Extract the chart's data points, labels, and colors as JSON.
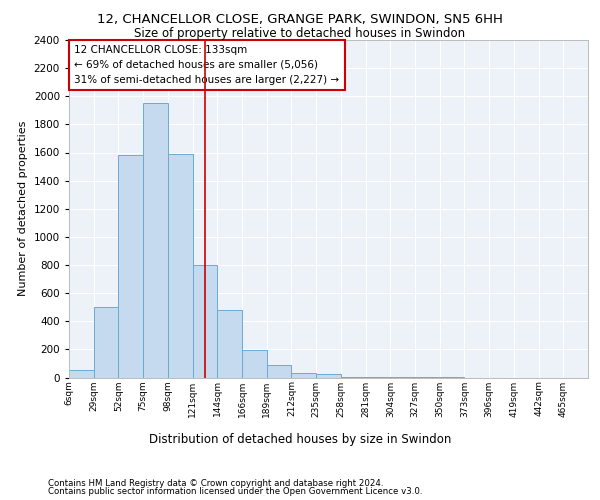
{
  "title_line1": "12, CHANCELLOR CLOSE, GRANGE PARK, SWINDON, SN5 6HH",
  "title_line2": "Size of property relative to detached houses in Swindon",
  "xlabel": "Distribution of detached houses by size in Swindon",
  "ylabel": "Number of detached properties",
  "footnote1": "Contains HM Land Registry data © Crown copyright and database right 2024.",
  "footnote2": "Contains public sector information licensed under the Open Government Licence v3.0.",
  "bar_labels": [
    "6sqm",
    "29sqm",
    "52sqm",
    "75sqm",
    "98sqm",
    "121sqm",
    "144sqm",
    "166sqm",
    "189sqm",
    "212sqm",
    "235sqm",
    "258sqm",
    "281sqm",
    "304sqm",
    "327sqm",
    "350sqm",
    "373sqm",
    "396sqm",
    "419sqm",
    "442sqm",
    "465sqm"
  ],
  "bar_heights": [
    55,
    500,
    1580,
    1950,
    1590,
    800,
    480,
    195,
    90,
    35,
    25,
    5,
    3,
    1,
    1,
    1,
    0,
    0,
    0,
    0,
    0
  ],
  "bar_color": "#c5d9ef",
  "bar_edge_color": "#6aabd2",
  "bg_color": "#edf2f9",
  "grid_color": "#ffffff",
  "vline_x": 4.57,
  "vline_color": "#cc0000",
  "annotation_text": "12 CHANCELLOR CLOSE: 133sqm\n← 69% of detached houses are smaller (5,056)\n31% of semi-detached houses are larger (2,227) →",
  "annotation_box_color": "#cc0000",
  "ylim": [
    0,
    2400
  ],
  "yticks": [
    0,
    200,
    400,
    600,
    800,
    1000,
    1200,
    1400,
    1600,
    1800,
    2000,
    2200,
    2400
  ],
  "bin_edges": [
    0,
    1,
    2,
    3,
    4,
    5,
    6,
    7,
    8,
    9,
    10,
    11,
    12,
    13,
    14,
    15,
    16,
    17,
    18,
    19,
    20,
    21
  ]
}
